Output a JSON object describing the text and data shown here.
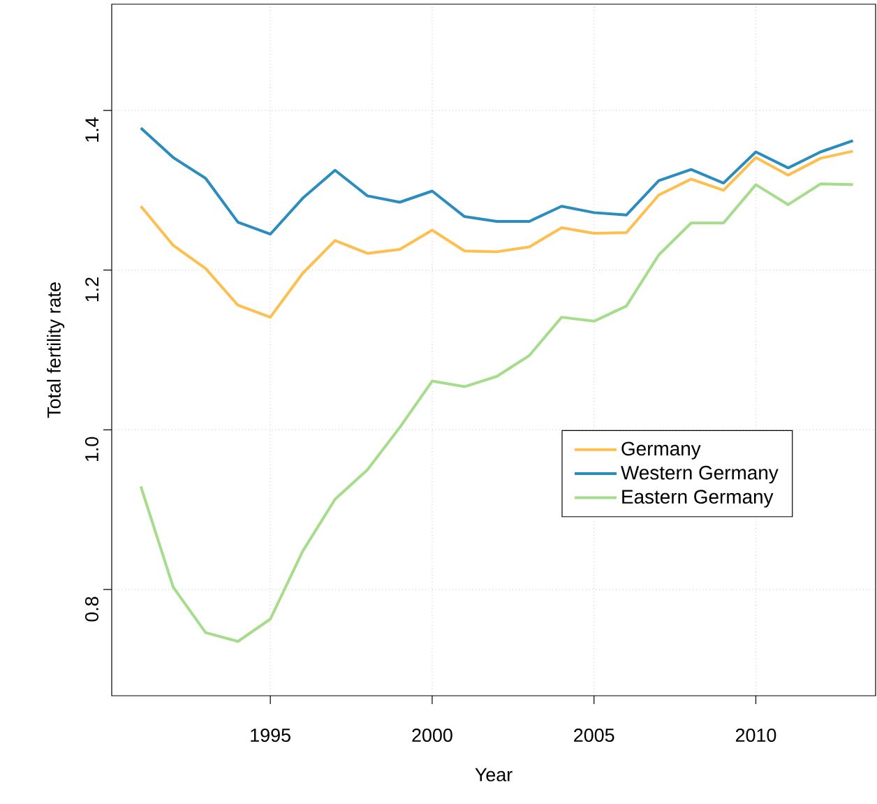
{
  "chart_data": {
    "type": "line",
    "xlabel": "Year",
    "ylabel": "Total fertility rate",
    "x": [
      1991,
      1992,
      1993,
      1994,
      1995,
      1996,
      1997,
      1998,
      1999,
      2000,
      2001,
      2002,
      2003,
      2004,
      2005,
      2006,
      2007,
      2008,
      2009,
      2010,
      2011,
      2012,
      2013
    ],
    "series": [
      {
        "name": "Germany",
        "color": "#fdbf50",
        "values": [
          1.28,
          1.231,
          1.202,
          1.156,
          1.141,
          1.196,
          1.237,
          1.221,
          1.226,
          1.25,
          1.224,
          1.223,
          1.229,
          1.253,
          1.246,
          1.247,
          1.294,
          1.314,
          1.3,
          1.341,
          1.319,
          1.34,
          1.349
        ]
      },
      {
        "name": "Western Germany",
        "color": "#2b8cbe",
        "values": [
          1.378,
          1.341,
          1.315,
          1.26,
          1.245,
          1.29,
          1.325,
          1.293,
          1.285,
          1.299,
          1.267,
          1.261,
          1.261,
          1.28,
          1.272,
          1.269,
          1.312,
          1.326,
          1.309,
          1.348,
          1.328,
          1.348,
          1.362
        ]
      },
      {
        "name": "Eastern Germany",
        "color": "#a6dc8c",
        "values": [
          0.929,
          0.803,
          0.746,
          0.735,
          0.763,
          0.848,
          0.913,
          0.95,
          1.003,
          1.061,
          1.054,
          1.067,
          1.093,
          1.141,
          1.136,
          1.155,
          1.219,
          1.259,
          1.259,
          1.307,
          1.282,
          1.308,
          1.307
        ]
      }
    ],
    "xlim": [
      1990.1,
      2013.7
    ],
    "ylim": [
      0.667,
      1.533
    ],
    "xticks": [
      1995,
      2000,
      2005,
      2010
    ],
    "yticks": [
      {
        "value": 0.8,
        "label": "0.8"
      },
      {
        "value": 1.0,
        "label": "1.0"
      },
      {
        "value": 1.2,
        "label": "1.2"
      },
      {
        "value": 1.4,
        "label": "1.4"
      }
    ],
    "grid": true,
    "legend": "right",
    "line_style": "solid",
    "marker": "none"
  }
}
